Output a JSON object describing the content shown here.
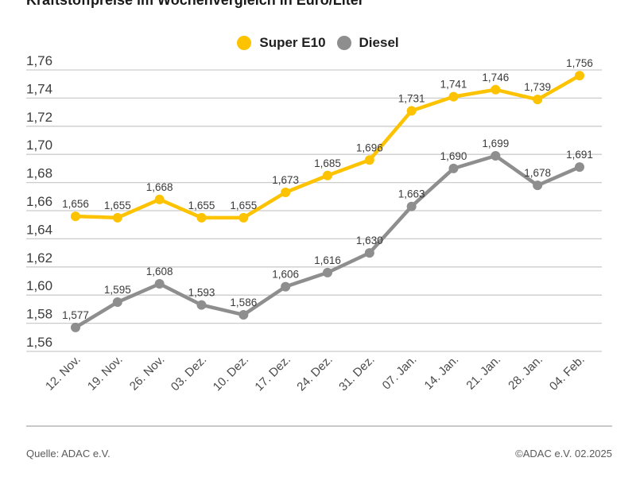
{
  "title": "Kraftstoffpreise im Wochenvergleich in Euro/Liter",
  "legend": {
    "items": [
      {
        "label": "Super E10",
        "color": "#FDC300"
      },
      {
        "label": "Diesel",
        "color": "#8E8E8E"
      }
    ]
  },
  "chart_data": {
    "type": "line",
    "title": "Kraftstoffpreise im Wochenvergleich in Euro/Liter",
    "categories": [
      "12. Nov.",
      "19. Nov.",
      "26. Nov.",
      "03. Dez.",
      "10. Dez.",
      "17. Dez.",
      "24. Dez.",
      "31. Dez.",
      "07. Jan.",
      "14. Jan.",
      "21. Jan.",
      "28. Jan.",
      "04. Feb."
    ],
    "series": [
      {
        "name": "Super E10",
        "color": "#FDC300",
        "values": [
          1.656,
          1.655,
          1.668,
          1.655,
          1.655,
          1.673,
          1.685,
          1.696,
          1.731,
          1.741,
          1.746,
          1.739,
          1.756
        ]
      },
      {
        "name": "Diesel",
        "color": "#8E8E8E",
        "values": [
          1.577,
          1.595,
          1.608,
          1.593,
          1.586,
          1.606,
          1.616,
          1.63,
          1.663,
          1.69,
          1.699,
          1.678,
          1.691
        ]
      }
    ],
    "ylim": [
      1.56,
      1.76
    ],
    "ytick_step": 0.02,
    "grid": true,
    "legend_position": "top-center",
    "decimal_separator": ",",
    "value_decimals": 3,
    "axis_decimals": 2
  },
  "footer": {
    "source_left": "Quelle: ADAC e.V.",
    "source_right": "©ADAC e.V. 02.2025"
  },
  "colors": {
    "grid": "#cccccc",
    "axis_label": "#3c3c3c",
    "data_label": "#3a3a3a",
    "x_label": "#4a4a4a",
    "title": "#1a1a1a",
    "separator": "#c8c8c8",
    "footer_text": "#5a5a5a"
  }
}
